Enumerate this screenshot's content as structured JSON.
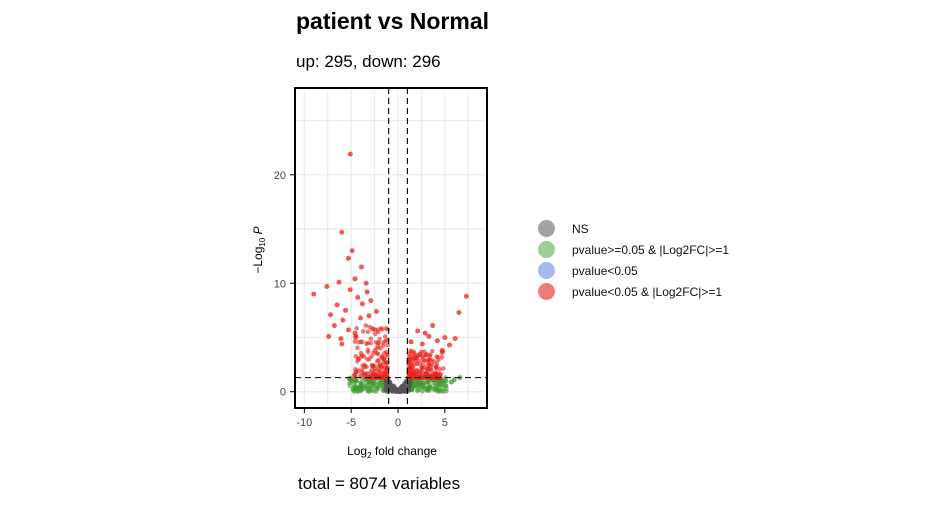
{
  "chart_data": {
    "type": "scatter",
    "title": "patient vs Normal",
    "subtitle": "up: 295, down: 296",
    "caption": "total = 8074 variables",
    "xlabel": "Log2 fold change",
    "ylabel": "-Log10 P",
    "xlim": [
      -11,
      9.5
    ],
    "ylim": [
      -1.5,
      28
    ],
    "x_ticks": [
      -10,
      -5,
      0,
      5
    ],
    "y_ticks": [
      0,
      10,
      20
    ],
    "x_tick_labels": [
      "-10",
      "-5",
      "0",
      "5"
    ],
    "y_tick_labels": [
      "0",
      "10",
      "20"
    ],
    "grid": true,
    "legend_position": "right",
    "thresholds": {
      "log2fc": [
        -1,
        1
      ],
      "neg_log10_p": 1.3
    },
    "legend": [
      {
        "name": "NS",
        "color": "#666666"
      },
      {
        "name": "pvalue>=0.05 & |Log2FC|>=1",
        "color": "#3f9b2f"
      },
      {
        "name": "pvalue<0.05",
        "color": "#4f72db"
      },
      {
        "name": "pvalue<0.05 & |Log2FC|>=1",
        "color": "#e8241c"
      }
    ],
    "series": [
      {
        "name": "pvalue<0.05 & |Log2FC|>=1",
        "points": [
          [
            -5.1,
            21.9
          ],
          [
            -6.0,
            14.7
          ],
          [
            -4.9,
            13.0
          ],
          [
            -5.3,
            12.3
          ],
          [
            -3.9,
            11.5
          ],
          [
            -6.3,
            10.1
          ],
          [
            -4.6,
            10.4
          ],
          [
            -3.4,
            10.0
          ],
          [
            -9.0,
            9.0
          ],
          [
            -5.1,
            9.4
          ],
          [
            -3.3,
            9.2
          ],
          [
            -2.9,
            8.4
          ],
          [
            -4.3,
            8.7
          ],
          [
            -7.6,
            9.7
          ],
          [
            -3.8,
            8.1
          ],
          [
            -6.5,
            8.0
          ],
          [
            -7.2,
            7.1
          ],
          [
            -5.6,
            7.5
          ],
          [
            -2.3,
            7.4
          ],
          [
            -4.0,
            6.8
          ],
          [
            -3.1,
            7.0
          ],
          [
            -5.9,
            6.6
          ],
          [
            -6.8,
            6.1
          ],
          [
            -7.4,
            5.1
          ],
          [
            -6.1,
            4.9
          ],
          [
            -5.3,
            5.7
          ],
          [
            -4.6,
            5.4
          ],
          [
            -2.7,
            5.8
          ],
          [
            -6.0,
            4.4
          ],
          [
            -3.9,
            4.6
          ],
          [
            7.3,
            8.8
          ],
          [
            6.5,
            7.3
          ],
          [
            3.7,
            6.1
          ],
          [
            2.9,
            5.4
          ],
          [
            3.3,
            5.1
          ],
          [
            5.0,
            5.0
          ],
          [
            2.1,
            5.6
          ],
          [
            4.2,
            4.7
          ],
          [
            5.5,
            4.3
          ],
          [
            6.1,
            4.9
          ],
          [
            1.4,
            4.6
          ],
          [
            2.6,
            4.4
          ],
          [
            4.7,
            3.8
          ],
          [
            3.0,
            3.4
          ],
          [
            1.7,
            3.1
          ]
        ]
      },
      {
        "name": "pvalue>=0.05 & |Log2FC|>=1",
        "points": [
          [
            5.1,
            1.0
          ],
          [
            6.0,
            1.1
          ],
          [
            6.6,
            1.3
          ],
          [
            5.7,
            0.9
          ],
          [
            -4.5,
            1.0
          ],
          [
            -3.0,
            0.9
          ]
        ]
      }
    ]
  }
}
